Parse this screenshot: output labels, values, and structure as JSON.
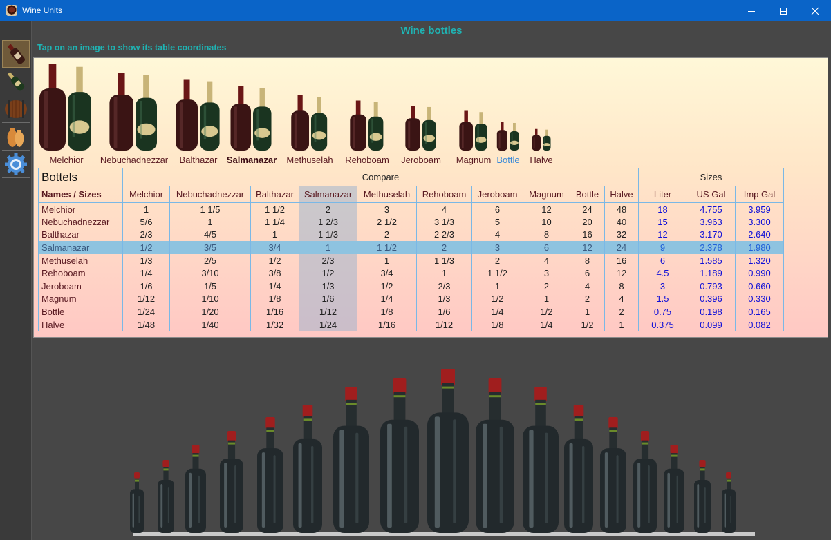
{
  "window": {
    "title": "Wine Units"
  },
  "page": {
    "title": "Wine bottles",
    "hint": "Tap on an image to show its table coordinates"
  },
  "nav": [
    {
      "name": "wine-bottle-icon",
      "active": true
    },
    {
      "name": "champagne-bottle-icon",
      "active": false
    },
    {
      "name": "barrel-icon",
      "active": false
    },
    {
      "name": "amphora-icon",
      "active": false
    },
    {
      "name": "settings-gear-icon",
      "active": false
    }
  ],
  "gallery": [
    {
      "label": "Melchior",
      "state": "normal",
      "scale": 1.0
    },
    {
      "label": "Nebuchadnezzar",
      "state": "normal",
      "scale": 0.9
    },
    {
      "label": "Balthazar",
      "state": "normal",
      "scale": 0.82
    },
    {
      "label": "Salmanazar",
      "state": "selected",
      "scale": 0.75
    },
    {
      "label": "Methuselah",
      "state": "normal",
      "scale": 0.64
    },
    {
      "label": "Rehoboam",
      "state": "normal",
      "scale": 0.58
    },
    {
      "label": "Jeroboam",
      "state": "normal",
      "scale": 0.52
    },
    {
      "label": "Magnum",
      "state": "normal",
      "scale": 0.46
    },
    {
      "label": "Bottle",
      "state": "highlight",
      "scale": 0.33
    },
    {
      "label": "Halve",
      "state": "normal",
      "scale": 0.25
    }
  ],
  "table": {
    "name": "Bottels",
    "names_sizes_label": "Names / Sizes",
    "compare_label": "Compare",
    "sizes_label": "Sizes",
    "compare_columns": [
      "Melchior",
      "Nebuchadnezzar",
      "Balthazar",
      "Salmanazar",
      "Methuselah",
      "Rehoboam",
      "Jeroboam",
      "Magnum",
      "Bottle",
      "Halve"
    ],
    "size_columns": [
      "Liter",
      "US Gal",
      "Imp Gal"
    ],
    "selected_row": 3,
    "selected_col": 3,
    "rows": [
      {
        "name": "Melchior",
        "compare": [
          "1",
          "1 1/5",
          "1 1/2",
          "2",
          "3",
          "4",
          "6",
          "12",
          "24",
          "48"
        ],
        "sizes": [
          "18",
          "4.755",
          "3.959"
        ]
      },
      {
        "name": "Nebuchadnezzar",
        "compare": [
          "5/6",
          "1",
          "1 1/4",
          "1 2/3",
          "2 1/2",
          "3 1/3",
          "5",
          "10",
          "20",
          "40"
        ],
        "sizes": [
          "15",
          "3.963",
          "3.300"
        ]
      },
      {
        "name": "Balthazar",
        "compare": [
          "2/3",
          "4/5",
          "1",
          "1 1/3",
          "2",
          "2 2/3",
          "4",
          "8",
          "16",
          "32"
        ],
        "sizes": [
          "12",
          "3.170",
          "2.640"
        ]
      },
      {
        "name": "Salmanazar",
        "compare": [
          "1/2",
          "3/5",
          "3/4",
          "1",
          "1 1/2",
          "2",
          "3",
          "6",
          "12",
          "24"
        ],
        "sizes": [
          "9",
          "2.378",
          "1.980"
        ]
      },
      {
        "name": "Methuselah",
        "compare": [
          "1/3",
          "2/5",
          "1/2",
          "2/3",
          "1",
          "1 1/3",
          "2",
          "4",
          "8",
          "16"
        ],
        "sizes": [
          "6",
          "1.585",
          "1.320"
        ]
      },
      {
        "name": "Rehoboam",
        "compare": [
          "1/4",
          "3/10",
          "3/8",
          "1/2",
          "3/4",
          "1",
          "1 1/2",
          "3",
          "6",
          "12"
        ],
        "sizes": [
          "4.5",
          "1.189",
          "0.990"
        ]
      },
      {
        "name": "Jeroboam",
        "compare": [
          "1/6",
          "1/5",
          "1/4",
          "1/3",
          "1/2",
          "2/3",
          "1",
          "2",
          "4",
          "8"
        ],
        "sizes": [
          "3",
          "0.793",
          "0.660"
        ]
      },
      {
        "name": "Magnum",
        "compare": [
          "1/12",
          "1/10",
          "1/8",
          "1/6",
          "1/4",
          "1/3",
          "1/2",
          "1",
          "2",
          "4"
        ],
        "sizes": [
          "1.5",
          "0.396",
          "0.330"
        ]
      },
      {
        "name": "Bottle",
        "compare": [
          "1/24",
          "1/20",
          "1/16",
          "1/12",
          "1/8",
          "1/6",
          "1/4",
          "1/2",
          "1",
          "2"
        ],
        "sizes": [
          "0.75",
          "0.198",
          "0.165"
        ]
      },
      {
        "name": "Halve",
        "compare": [
          "1/48",
          "1/40",
          "1/32",
          "1/24",
          "1/16",
          "1/12",
          "1/8",
          "1/4",
          "1/2",
          "1"
        ],
        "sizes": [
          "0.375",
          "0.099",
          "0.082"
        ]
      }
    ]
  },
  "colors": {
    "accent": "#1fb3b3",
    "titlebar": "#0a64c8",
    "label": "#5a1a22",
    "size_value": "#1010d8",
    "selected_row": "#8ec3e0",
    "grid_line": "#7ab8e6"
  }
}
